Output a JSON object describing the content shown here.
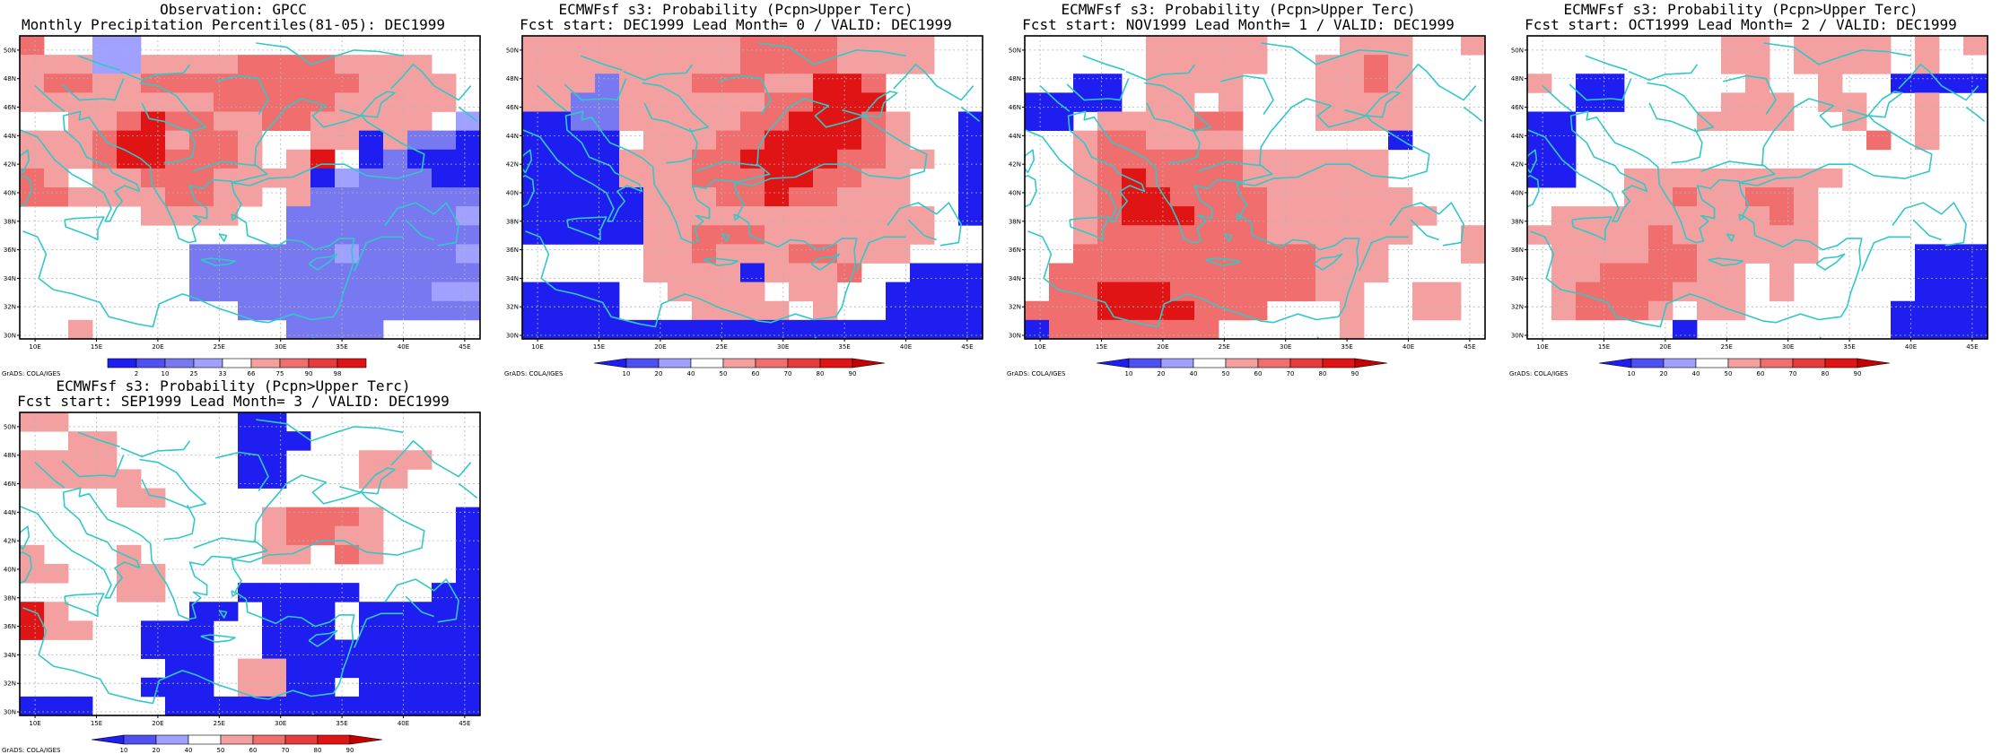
{
  "panels": [
    {
      "title1": "Observation: GPCC",
      "title2": "Monthly Precipitation Percentiles(81-05): DEC1999",
      "legend_type": "obs",
      "grid": [
        "r2 w w b1 b1 w w w w w w w w w w w w w w",
        "r1 r1 r1 b1 b1 r1 r1 r1 r1 r2 r2 r2 r2 r1 r1 r1 r1 w w",
        "r1 r2 r2 r1 r1 r2 r2 r2 r2 r2 r2 r2 r2 r2 r1 r1 r1 r1 w",
        "r1 r1 r1 r1 r1 r1 r1 r1 r2 r2 r2 r2 r2 r1 r1 r1 r1 r1 w",
        "w w r1 r1 r2 r3 r2 r2 r1 r1 r2 r2 r1 r1 r1 r1 r1 w b1",
        "r1 r1 r1 r2 r3 r3 r1 r2 r2 r1 w w r1 r1 b3 r1 b2 b2 b3",
        "r1 r1 r1 r2 r3 r3 r2 r2 r2 r1 w r1 r3 w b3 b2 b3 b3 b3",
        "r2 r1 w r1 r1 r2 r2 r2 r1 r1 r1 r1 b3 b1 b2 b2 b2 b3 b3",
        "r2 r2 r1 r1 r1 r1 r2 r2 r1 r1 w r1 b2 b2 b2 b2 b2 b2 b2",
        "w w w w w r1 r1 r1 r1 w w b2 b2 b2 b2 b2 b2 b2 b1",
        "w w w w w w w w w w w b2 b2 b2 b2 b2 b2 b2 b2",
        "w w w w w w w b2 b2 b2 b2 b2 b2 b1 b2 b2 b2 b2 b1",
        "w w w w w w w b2 b2 b2 b2 b2 b2 b2 b2 b2 b2 b2 b2",
        "w w w w w w w b2 b2 b2 b2 b2 b2 b2 b2 b2 b2 b1 b1",
        "w w w w w w w w w b2 b2 b2 b2 b2 b2 b2 b2 b2 b2",
        "w w r1 w w w w w w w w b2 b2 b2 b2 w w w w"
      ],
      "legend_labels": [
        "2",
        "10",
        "25",
        "33",
        "66",
        "75",
        "90",
        "98"
      ]
    },
    {
      "title1": "ECMWFsf s3: Probability (Pcpn>Upper Terc)",
      "title2": "Fcst start: DEC1999   Lead Month= 0 / VALID: DEC1999",
      "legend_type": "fcst",
      "grid": [
        "r1 r1 r1 r1 r1 r1 r1 r1 r1 r2 r2 r2 r2 r1 r1 r1 r1 w w",
        "r1 r1 r1 r1 r1 r1 r1 r1 r1 r2 r2 r2 r2 r1 r1 r1 r1 w w",
        "r1 r1 r1 b2 r1 r1 r1 r2 r2 r2 r1 r1 r3 r3 r2 w w w w",
        "r1 r1 b2 b2 r1 r1 r1 r1 r1 r1 r2 r2 r3 r3 r3 w w w w",
        "b3 b3 b2 b2 r1 r1 r1 r1 r1 r2 r2 r3 r3 r3 r2 r1 w w b3",
        "b3 b3 b3 b3 w r1 r1 r1 r2 r2 r3 r3 r3 r3 r2 r1 w w b3",
        "b3 b3 b3 b3 r1 r1 r1 r2 r2 r3 r3 r3 r3 r2 r2 r1 r1 w b3",
        "b3 b3 b3 b3 r1 r1 r1 r2 r2 r2 r3 r3 r2 r2 r1 r1 w w b3",
        "b3 b3 b3 b3 b3 r1 r1 r1 r2 r2 r3 r2 r2 r1 r1 r1 w w b3",
        "b3 b3 b3 b3 b3 r1 r1 r1 r1 r1 r1 r1 r1 r1 r1 r1 r1 w b3",
        "b3 b3 b3 b3 b3 r1 r1 r2 r2 r2 r1 r1 r1 r1 r1 r1 r1 w w",
        "w w w w w r1 r1 r2 r1 r1 r1 r2 r2 r1 r1 r1 w w w",
        "w w w w w r1 r1 r1 r1 b3 r1 r1 r1 r2 w w b3 b3 b3",
        "b3 b3 b3 b3 w w r1 r1 r1 r1 w r1 r1 w w b3 b3 b3 b3",
        "b3 b3 b3 b3 w w w r1 r1 r1 r1 w r1 w w b3 b3 b3 b3",
        "b3 b3 b3 b3 b3 b3 b3 b3 b3 b3 b3 b3 b3 b3 b3 b3 b3 b3 b3"
      ],
      "legend_labels": [
        "10",
        "20",
        "40",
        "50",
        "60",
        "70",
        "80",
        "90"
      ]
    },
    {
      "title1": "ECMWFsf s3: Probability (Pcpn>Upper Terc)",
      "title2": "Fcst start: NOV1999   Lead Month= 1 / VALID: DEC1999",
      "legend_type": "fcst",
      "grid": [
        "w w w w w r1 r1 r1 r1 r1 w w w r1 r1 r1 w w r1",
        "w w w w w r1 r1 r1 r1 r1 w w r1 r1 r2 r1 w w w",
        "w w b3 b3 w r1 r1 r1 r1 w w w r1 r1 r2 r1 w w w",
        "b3 b3 b3 b3 w r1 r1 w r1 w w w r1 r1 r1 r1 w w w",
        "b3 b3 w r1 r1 r1 r1 r2 r2 w w w r1 r1 r1 r1 w w w",
        "w w r1 r2 r2 r1 r1 r1 r1 w w w w w w b3 w w w",
        "w w r1 r2 r2 r2 r2 r2 r2 r1 r1 r1 r1 r1 r1 w w w w",
        "w w r1 r2 r3 r2 r2 r2 r2 r1 r1 r1 r1 r1 r1 w w w w",
        "w w r1 r2 r3 r3 r2 r2 r2 r2 r1 r1 r1 r1 r1 r1 w w w",
        "w w r1 r2 r3 r3 r3 r2 r2 r2 r1 r1 r1 r1 r1 r1 r1 w w",
        "w w r1 r2 r2 r2 r2 r2 r2 r2 r1 r1 r1 r1 r1 r1 w w r1",
        "w w r2 r2 r2 r2 r2 r2 r2 r2 r2 r2 r1 r1 r1 w w w r1",
        "w r2 r2 r2 r2 r2 r2 r2 r2 r2 r2 r2 r1 r1 r1 w w w w",
        "w r2 r2 r3 r3 r3 r2 r2 r2 r2 r2 r2 r1 r1 w w r1 r1 w",
        "r2 r2 r2 r3 r3 r3 r3 r2 r2 r2 w w w r1 w w r1 r1 w",
        "b3 r2 r2 r2 r2 r2 r2 r2 w w w w w r1 w w w w w"
      ],
      "legend_labels": [
        "10",
        "20",
        "40",
        "50",
        "60",
        "70",
        "80",
        "90"
      ]
    },
    {
      "title1": "ECMWFsf s3: Probability (Pcpn>Upper Terc)",
      "title2": "Fcst start: OCT1999   Lead Month= 2 / VALID: DEC1999",
      "legend_type": "fcst",
      "grid": [
        "w w w w w w w w r1 r1 w r1 r1 r1 r1 w r1 w r1",
        "w w w w w w w w r1 r1 w r1 r1 r1 r1 w r1 w w",
        "r1 w b3 b3 w w w w w r1 w w r1 w w b3 b3 b3 b3",
        "w w b3 b3 w w w w r1 r1 r1 w r1 r1 w w r1 w w",
        "b3 b3 w w w w w r1 r1 r1 r1 w w r1 w w r1 w w",
        "b3 b3 w w w w w w w w w w w w r2 w r1 w w",
        "b3 b3 w w w w w w w w w w w w w w w w w",
        "b3 b3 w w r1 r1 r1 r1 r1 r1 r1 r1 r1 w w w w w w",
        "w w w w r1 r1 r2 r1 r1 r2 r2 r1 w w w w w w w",
        "w r1 r1 r1 r1 r1 r1 r1 r1 r1 r2 r1 w w w w w w w",
        "r1 r1 r1 r1 r1 r2 r1 r1 r1 r1 r1 r1 w w w w w w w",
        "w r1 r1 r1 r1 r2 r2 r1 r1 r1 r1 r1 w w w w b3 b3 b3",
        "w r1 r1 r2 r2 r2 r2 r1 r1 w r1 w w w w w b3 b3 b3",
        "w r1 r2 r2 r2 r2 r1 r1 r1 w r1 w w w w w b3 b3 b3",
        "w r1 r2 r2 r2 r1 w r1 r1 w w w w w w b3 b3 b3 b3",
        "w w w w w w b3 w w w w w w w w b3 b3 b3 b3"
      ],
      "legend_labels": [
        "10",
        "20",
        "40",
        "50",
        "60",
        "70",
        "80",
        "90"
      ]
    },
    {
      "title1": "ECMWFsf s3: Probability (Pcpn>Upper Terc)",
      "title2": "Fcst start: SEP1999   Lead Month= 3 / VALID: DEC1999",
      "legend_type": "fcst",
      "grid": [
        "r1 r1 w w w w w w w b3 b3 w w w w w w w w",
        "w w r1 r1 w w w w w b3 b3 b3 w w w w w w w",
        "r1 r1 r1 r1 w w w w w b3 b3 w w w r1 r1 r1 w w",
        "r1 r1 r1 r1 r1 w w w w b3 b3 w w w r1 r1 w w w",
        "w w w w r1 r1 w w w w w w w w w w w w w",
        "w w w w w w w w w w r1 r2 r2 r2 r1 w w w b3",
        "w w w w w w w w w w r1 r2 r2 r1 r1 w w w b3",
        "r1 w w w r1 w w w w w r1 r1 w r2 r1 w w w b3",
        "r1 r1 w w r1 r1 w w w w w w w w w w w w b3",
        "w w w w r1 r1 w w w b3 b3 b3 b3 b3 w w w b3 b3",
        "r3 r1 w w w w w b3 b3 w b3 b3 b3 w b3 b3 b3 b3 b3",
        "r3 r1 r1 w w b3 b3 b3 w w b3 b3 b3 w b3 b3 b3 b3 b3",
        "w w w w w b3 b3 b3 w w b3 b3 b3 b3 b3 b3 b3 b3 b3",
        "w w w w w w b3 b3 w r1 r1 b3 b3 b3 b3 b3 b3 b3 b3",
        "w w w w w b3 b3 b3 w r1 r1 b3 b3 w b3 b3 b3 b3 b3",
        "b3 b3 b3 w w w b3 b3 b3 b3 b3 b3 b3 b3 b3 b3 b3 b3 b3"
      ],
      "legend_labels": [
        "10",
        "20",
        "40",
        "50",
        "60",
        "70",
        "80",
        "90"
      ]
    }
  ],
  "x_tick_labels": [
    "10E",
    "15E",
    "20E",
    "25E",
    "30E",
    "35E",
    "40E",
    "45E"
  ],
  "y_tick_labels": [
    "50N",
    "48N",
    "46N",
    "44N",
    "42N",
    "40N",
    "38N",
    "36N",
    "34N",
    "32N",
    "30N"
  ],
  "credit": "GrADS: COLA/IGES",
  "colors": {
    "w": "#ffffff",
    "b1": "#a0a0ff",
    "b2": "#7878f0",
    "b3": "#1e1ef0",
    "r1": "#f5a0a0",
    "r2": "#f06e6e",
    "r3": "#e01414",
    "coast": "#32c8c8",
    "grid_line": "#b4b4b4"
  },
  "legend_colors": {
    "obs": [
      "#1e1ef0",
      "#5050f0",
      "#7878f0",
      "#a0a0ff",
      "#ffffff",
      "#f5a0a0",
      "#f06e6e",
      "#e63c3c",
      "#e01414"
    ],
    "fcst": [
      "#1e1ef0",
      "#5050f0",
      "#a0a0ff",
      "#ffffff",
      "#f5a0a0",
      "#f06e6e",
      "#e63c3c",
      "#e01414",
      "#c80000"
    ]
  }
}
